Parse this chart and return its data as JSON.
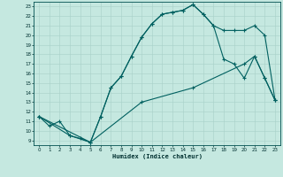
{
  "xlabel": "Humidex (Indice chaleur)",
  "bg_color": "#c5e8e0",
  "grid_color": "#a8d0c8",
  "line_color": "#006060",
  "xlim": [
    -0.5,
    23.5
  ],
  "ylim": [
    8.5,
    23.5
  ],
  "xticks": [
    0,
    1,
    2,
    3,
    4,
    5,
    6,
    7,
    8,
    9,
    10,
    11,
    12,
    13,
    14,
    15,
    16,
    17,
    18,
    19,
    20,
    21,
    22,
    23
  ],
  "yticks": [
    9,
    10,
    11,
    12,
    13,
    14,
    15,
    16,
    17,
    18,
    19,
    20,
    21,
    22,
    23
  ],
  "curve1_x": [
    0,
    1,
    2,
    3,
    4,
    5,
    6,
    7,
    8,
    9,
    10,
    11,
    12,
    13,
    14,
    15,
    16,
    17,
    18,
    19,
    20,
    21,
    22,
    23
  ],
  "curve1_y": [
    11.5,
    10.5,
    11.0,
    9.5,
    9.2,
    8.8,
    11.5,
    14.5,
    15.7,
    17.8,
    19.8,
    21.2,
    22.2,
    22.4,
    22.6,
    23.2,
    22.2,
    21.0,
    20.5,
    20.5,
    20.5,
    21.0,
    20.0,
    13.2
  ],
  "curve2_x": [
    0,
    3,
    5,
    6,
    7,
    8,
    9,
    10,
    11,
    12,
    13,
    14,
    15,
    16,
    17,
    18,
    19,
    20,
    21,
    22,
    23
  ],
  "curve2_y": [
    11.5,
    9.5,
    8.8,
    11.5,
    14.5,
    15.7,
    17.8,
    19.8,
    21.2,
    22.2,
    22.4,
    22.6,
    23.2,
    22.2,
    21.0,
    17.5,
    17.0,
    15.5,
    17.8,
    15.5,
    13.2
  ],
  "curve3_x": [
    0,
    5,
    10,
    15,
    20,
    21,
    22,
    23
  ],
  "curve3_y": [
    11.5,
    8.8,
    13.0,
    14.5,
    17.0,
    17.8,
    15.5,
    13.2
  ]
}
